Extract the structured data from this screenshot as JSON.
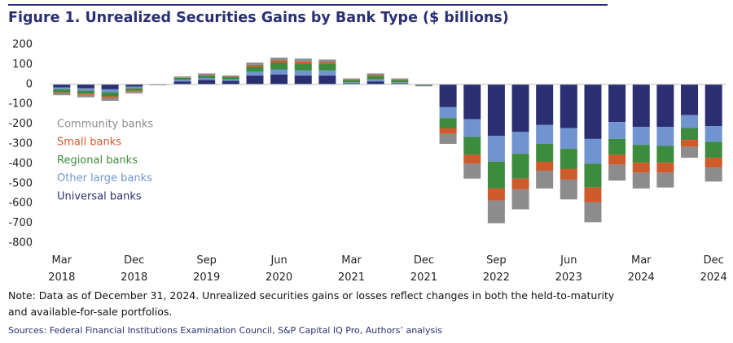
{
  "chart_data": {
    "type": "bar",
    "stacked": true,
    "title": "Figure 1. Unrealized Securities Gains by Bank Type ($ billions)",
    "note": "Note: Data as of December 31, 2024. Unrealized securities gains or losses reflect changes in both the held-to-maturity and available-for-sale portfolios.",
    "source": "Sources: Federal Financial Institutions Examination Council, S&P Capital IQ Pro, Authors’ analysis",
    "categories": [
      "Mar 2018",
      null,
      null,
      "Dec 2018",
      null,
      null,
      "Sep 2019",
      null,
      null,
      "Jun 2020",
      null,
      null,
      "Mar 2021",
      null,
      null,
      "Dec 2021",
      null,
      null,
      "Sep 2022",
      null,
      null,
      "Jun 2023",
      null,
      null,
      "Mar 2024",
      null,
      null,
      "Dec 2024"
    ],
    "ylim": [
      -800,
      200
    ],
    "yticks": [
      200,
      100,
      0,
      -100,
      -200,
      -300,
      -400,
      -500,
      -600,
      -700,
      -800
    ],
    "series": [
      {
        "name": "Universal banks",
        "color": "#2b2f72",
        "values": [
          -15,
          -20,
          -25,
          -12,
          -2,
          15,
          22,
          18,
          45,
          50,
          45,
          45,
          5,
          15,
          5,
          -3,
          -115,
          -175,
          -260,
          -240,
          -205,
          -220,
          -275,
          -190,
          -215,
          -215,
          -155,
          -210
        ]
      },
      {
        "name": "Other large banks",
        "color": "#7094d0",
        "values": [
          -10,
          -12,
          -15,
          -8,
          -1,
          8,
          10,
          8,
          20,
          25,
          25,
          25,
          5,
          10,
          5,
          -2,
          -55,
          -90,
          -130,
          -110,
          -95,
          -105,
          -125,
          -85,
          -90,
          -95,
          -65,
          -80
        ]
      },
      {
        "name": "Regional banks",
        "color": "#3d8b3d",
        "values": [
          -15,
          -15,
          -20,
          -12,
          -1,
          10,
          13,
          11,
          25,
          35,
          35,
          33,
          12,
          18,
          12,
          -3,
          -50,
          -90,
          -135,
          -125,
          -90,
          -100,
          -120,
          -80,
          -90,
          -85,
          -60,
          -80
        ]
      },
      {
        "name": "Small banks",
        "color": "#cf5a2c",
        "values": [
          -5,
          -6,
          -8,
          -5,
          0,
          2,
          3,
          3,
          8,
          10,
          10,
          9,
          3,
          5,
          3,
          -1,
          -30,
          -45,
          -60,
          -55,
          -45,
          -55,
          -75,
          -50,
          -50,
          -50,
          -35,
          -50
        ]
      },
      {
        "name": "Community banks",
        "color": "#8c8c8c",
        "values": [
          -10,
          -12,
          -15,
          -8,
          -1,
          5,
          7,
          5,
          12,
          15,
          15,
          13,
          5,
          7,
          5,
          -1,
          -50,
          -75,
          -115,
          -100,
          -90,
          -100,
          -100,
          -80,
          -80,
          -75,
          -55,
          -70
        ]
      }
    ]
  }
}
